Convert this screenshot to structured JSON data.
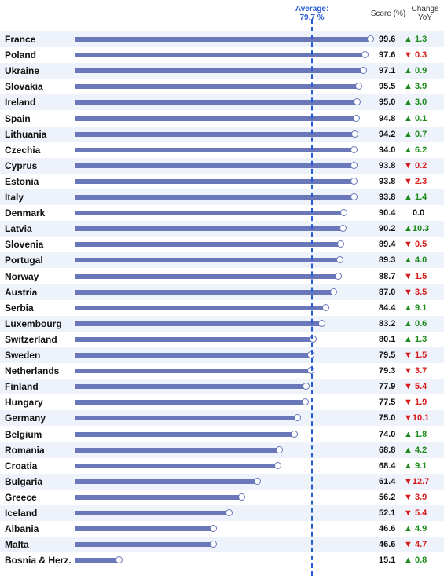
{
  "header": {
    "average_label": "Average:",
    "average_value_label": "79.7 %",
    "score_label": "Score (%)",
    "change_label_line1": "Change",
    "change_label_line2": "YoY"
  },
  "colors": {
    "bar": "#6a77b8",
    "average_line": "#2a5bd7",
    "up": "#1a8a1a",
    "down": "#d61a1a",
    "row_band": "#eef2fa"
  },
  "chart_data": {
    "type": "bar",
    "orientation": "horizontal",
    "average": 79.7,
    "xlim": [
      0,
      100
    ],
    "categories": [
      "France",
      "Poland",
      "Ukraine",
      "Slovakia",
      "Ireland",
      "Spain",
      "Lithuania",
      "Czechia",
      "Cyprus",
      "Estonia",
      "Italy",
      "Denmark",
      "Latvia",
      "Slovenia",
      "Portugal",
      "Norway",
      "Austria",
      "Serbia",
      "Luxembourg",
      "Switzerland",
      "Sweden",
      "Netherlands",
      "Finland",
      "Hungary",
      "Germany",
      "Belgium",
      "Romania",
      "Croatia",
      "Bulgaria",
      "Greece",
      "Iceland",
      "Albania",
      "Malta",
      "Bosnia & Herz."
    ],
    "values": [
      99.6,
      97.6,
      97.1,
      95.5,
      95.0,
      94.8,
      94.2,
      94.0,
      93.8,
      93.8,
      93.8,
      90.4,
      90.2,
      89.4,
      89.3,
      88.7,
      87.0,
      84.4,
      83.2,
      80.1,
      79.5,
      79.3,
      77.9,
      77.5,
      75.0,
      74.0,
      68.8,
      68.4,
      61.4,
      56.2,
      52.1,
      46.6,
      46.6,
      15.1
    ],
    "scores_text": [
      "99.6",
      "97.6",
      "97.1",
      "95.5",
      "95.0",
      "94.8",
      "94.2",
      "94.0",
      "93.8",
      "93.8",
      "93.8",
      "90.4",
      "90.2",
      "89.4",
      "89.3",
      "88.7",
      "87.0",
      "84.4",
      "83.2",
      "80.1",
      "79.5",
      "79.3",
      "77.9",
      "77.5",
      "75.0",
      "74.0",
      "68.8",
      "68.4",
      "61.4",
      "56.2",
      "52.1",
      "46.6",
      "46.6",
      "15.1"
    ],
    "change_direction": [
      "up",
      "down",
      "up",
      "up",
      "up",
      "up",
      "up",
      "up",
      "down",
      "down",
      "up",
      "none",
      "up",
      "down",
      "up",
      "down",
      "down",
      "up",
      "up",
      "up",
      "down",
      "down",
      "down",
      "down",
      "down",
      "up",
      "up",
      "up",
      "down",
      "down",
      "down",
      "up",
      "down",
      "up"
    ],
    "change_text": [
      "1.3",
      "0.3",
      "0.9",
      "3.9",
      "3.0",
      "0.1",
      "0.7",
      "6.2",
      "0.2",
      "2.3",
      "1.4",
      "0.0",
      "10.3",
      "0.5",
      "4.0",
      "1.5",
      "3.5",
      "9.1",
      "0.6",
      "1.3",
      "1.5",
      "3.7",
      "5.4",
      "1.9",
      "10.1",
      "1.8",
      "4.2",
      "9.1",
      "12.7",
      "3.9",
      "5.4",
      "4.9",
      "4.7",
      "0.8"
    ]
  }
}
